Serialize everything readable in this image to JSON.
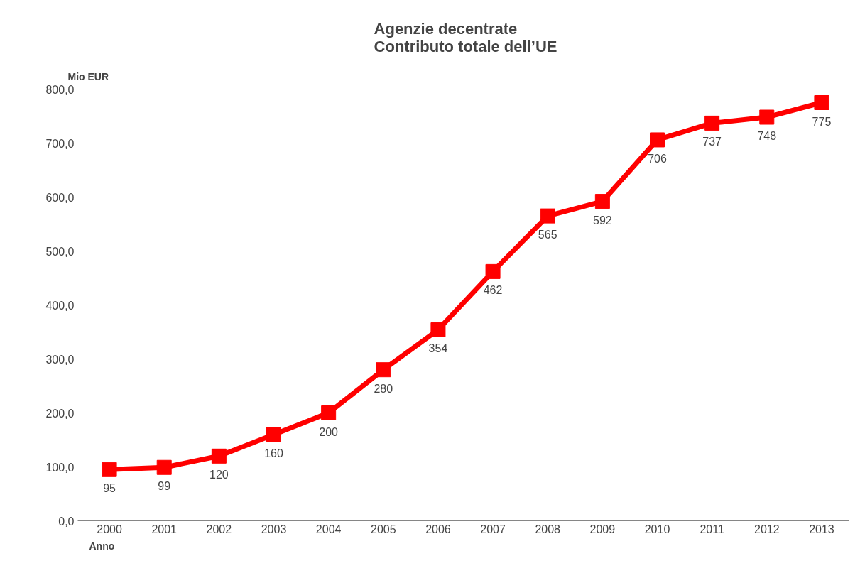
{
  "chart_data": {
    "type": "line",
    "title": "Agenzie decentrate\nContributo totale dell’UE",
    "ylabel": "Mio EUR",
    "xlabel": "Anno",
    "categories": [
      "2000",
      "2001",
      "2002",
      "2003",
      "2004",
      "2005",
      "2006",
      "2007",
      "2008",
      "2009",
      "2010",
      "2011",
      "2012",
      "2013"
    ],
    "series": [
      {
        "color": "#ff0000",
        "values": [
          95,
          99,
          120,
          160,
          200,
          280,
          354,
          462,
          565,
          592,
          706,
          737,
          748,
          775
        ]
      }
    ],
    "ylim": [
      0,
      800
    ],
    "yticks": [
      {
        "value": 0,
        "label": "0,0"
      },
      {
        "value": 100,
        "label": "100,0"
      },
      {
        "value": 200,
        "label": "200,0"
      },
      {
        "value": 300,
        "label": "300,0"
      },
      {
        "value": 400,
        "label": "400,0"
      },
      {
        "value": 500,
        "label": "500,0"
      },
      {
        "value": 600,
        "label": "600,0"
      },
      {
        "value": 700,
        "label": "700,0"
      },
      {
        "value": 800,
        "label": "800,0"
      }
    ],
    "grid": "y",
    "marker": "square",
    "line_style": "solid",
    "data_labels": true
  }
}
